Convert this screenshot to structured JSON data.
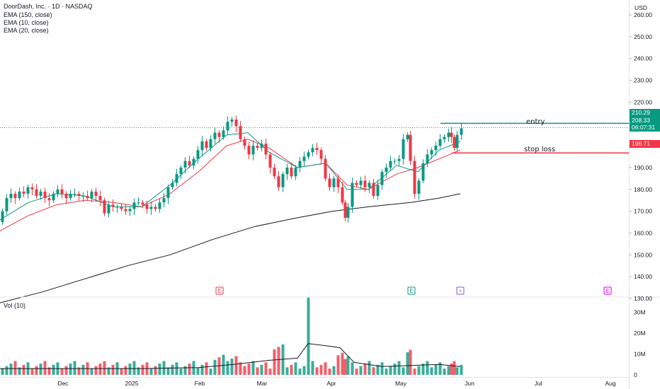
{
  "header": {
    "title": "DoorDash, Inc. · 1D · NASDAQ",
    "indicators": [
      "EMA (150, close)",
      "EMA (10, close)",
      "EMA (20, close)"
    ],
    "currency": "USD"
  },
  "chart_data": {
    "type": "candlestick",
    "price_axis": {
      "ticks": [
        "130.00",
        "140.00",
        "150.00",
        "160.00",
        "170.00",
        "180.00",
        "190.00",
        "200.00",
        "210.00",
        "220.00",
        "230.00",
        "240.00",
        "250.00",
        "260.00"
      ],
      "range": [
        124,
        264
      ]
    },
    "time_axis": {
      "labels": [
        "Dec",
        "2025",
        "Feb",
        "Mar",
        "Apr",
        "May",
        "Jun",
        "Jul",
        "Aug"
      ]
    },
    "levels": {
      "entry": {
        "value": 210.29,
        "label": "entry",
        "color": "#089981"
      },
      "stop_loss": {
        "value": 196.71,
        "label": "stop loss",
        "color": "#f23645"
      },
      "last_price": {
        "value": 208.33,
        "countdown": "06:07:31",
        "color": "#089981"
      }
    },
    "volume": {
      "title": "Vol (10)",
      "ticks": [
        "0",
        "10M",
        "20M",
        "30M"
      ]
    },
    "events": [
      {
        "date": "Feb",
        "symbol": "E",
        "color": "#f23645"
      },
      {
        "date": "May",
        "symbol": "E",
        "color": "#089981"
      },
      {
        "date": "May-end",
        "symbol": "⚡",
        "color": "#7e57c2"
      },
      {
        "date": "Aug",
        "symbol": "E",
        "color": "#d500f9"
      }
    ],
    "colors": {
      "up": "#089981",
      "down": "#f23645",
      "ema150": "#131722",
      "ema10": "#089981",
      "ema20": "#f23645"
    }
  }
}
